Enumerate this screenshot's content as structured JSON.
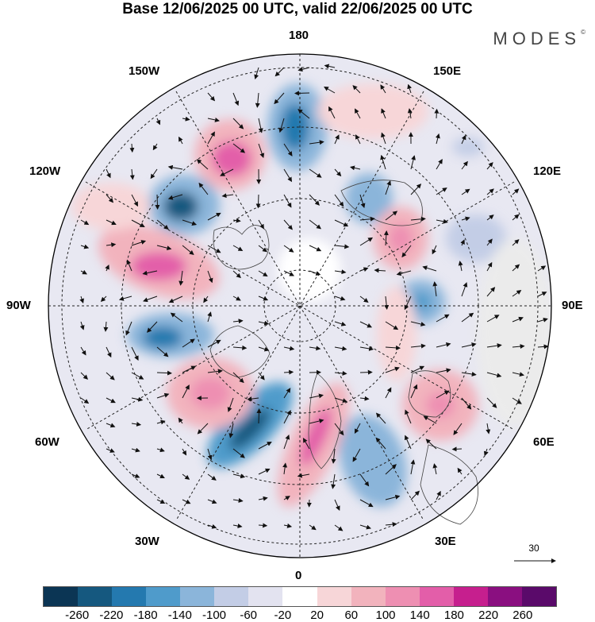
{
  "title": "Base 12/06/2025 00 UTC, valid 22/06/2025 00 UTC",
  "brand": "MODES",
  "brand_mark": "©",
  "longitude_labels": {
    "top": "180",
    "bottom": "0",
    "left": "90W",
    "right": "90E",
    "upper_left_1": "150W",
    "upper_left_2": "120W",
    "upper_right_1": "150E",
    "upper_right_2": "120E",
    "lower_left_1": "60W",
    "lower_left_2": "30W",
    "lower_right_1": "60E",
    "lower_right_2": "30E"
  },
  "vector_scale": {
    "label": "30"
  },
  "colorbar": {
    "colors": [
      "#0b3554",
      "#15587f",
      "#2479af",
      "#4f9bcb",
      "#8bb5da",
      "#c3cde6",
      "#e3e3f0",
      "#ffffff",
      "#f7d6d8",
      "#f2b3bd",
      "#ee8fb2",
      "#e35ea9",
      "#c61f8e",
      "#8a0f80",
      "#5a0a6a"
    ],
    "tick_labels": [
      "-260",
      "-220",
      "-180",
      "-140",
      "-100",
      "-60",
      "-20",
      "20",
      "60",
      "100",
      "140",
      "180",
      "220",
      "260"
    ]
  }
}
